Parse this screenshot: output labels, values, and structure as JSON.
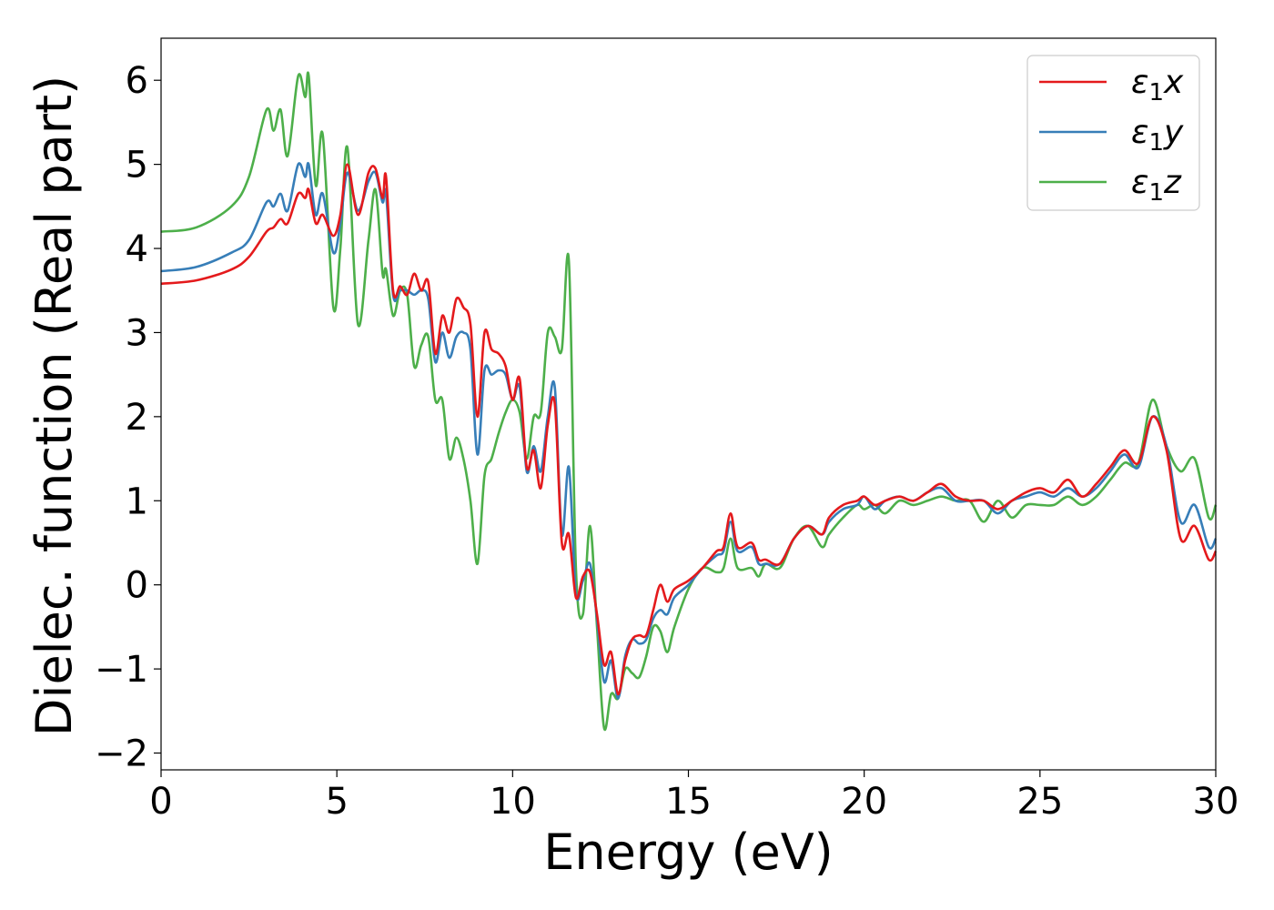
{
  "chart_data": {
    "type": "line",
    "xlabel": "Energy (eV)",
    "ylabel": "Dielec. function (Real part)",
    "xlim": [
      0,
      30
    ],
    "ylim": [
      -2.2,
      6.5
    ],
    "xticks": [
      0,
      5,
      10,
      15,
      20,
      25,
      30
    ],
    "xtick_labels": [
      "0",
      "5",
      "10",
      "15",
      "20",
      "25",
      "30"
    ],
    "yticks": [
      -2,
      -1,
      0,
      1,
      2,
      3,
      4,
      5,
      6
    ],
    "ytick_labels": [
      "−2",
      "−1",
      "0",
      "1",
      "2",
      "3",
      "4",
      "5",
      "6"
    ],
    "grid": false,
    "legend_position": "top-right",
    "series": [
      {
        "name": "ε1x",
        "legend_main": "ε",
        "legend_sub": "1",
        "legend_var": "x",
        "color": "#e41a1c",
        "x": [
          0,
          1,
          2,
          2.5,
          3.0,
          3.2,
          3.4,
          3.6,
          3.9,
          4.1,
          4.2,
          4.4,
          4.6,
          4.9,
          5.1,
          5.3,
          5.6,
          5.9,
          6.1,
          6.3,
          6.4,
          6.6,
          6.8,
          7.0,
          7.2,
          7.4,
          7.6,
          7.8,
          8.0,
          8.2,
          8.4,
          8.6,
          8.8,
          9.0,
          9.2,
          9.4,
          9.6,
          9.8,
          10.0,
          10.2,
          10.4,
          10.6,
          10.8,
          11.0,
          11.2,
          11.4,
          11.6,
          11.8,
          12.0,
          12.2,
          12.4,
          12.6,
          12.8,
          13.0,
          13.2,
          13.4,
          13.6,
          13.8,
          14.0,
          14.2,
          14.4,
          14.6,
          15.0,
          15.4,
          15.8,
          16.0,
          16.2,
          16.4,
          16.8,
          17.0,
          17.2,
          17.6,
          18.0,
          18.4,
          18.8,
          19.0,
          19.4,
          19.8,
          20.0,
          20.3,
          20.6,
          21.0,
          21.4,
          21.8,
          22.2,
          22.6,
          23.0,
          23.4,
          23.8,
          24.2,
          24.6,
          25.0,
          25.4,
          25.8,
          26.2,
          26.6,
          27.0,
          27.4,
          27.8,
          28.2,
          28.6,
          29.0,
          29.4,
          29.8,
          30.0
        ],
        "y": [
          3.58,
          3.62,
          3.75,
          3.9,
          4.2,
          4.25,
          4.35,
          4.3,
          4.65,
          4.6,
          4.7,
          4.3,
          4.4,
          4.15,
          4.4,
          5.0,
          4.4,
          4.9,
          4.95,
          4.6,
          4.85,
          3.5,
          3.55,
          3.45,
          3.7,
          3.5,
          3.6,
          2.75,
          3.2,
          3.0,
          3.4,
          3.3,
          3.1,
          2.0,
          3.0,
          2.8,
          2.75,
          2.6,
          2.2,
          2.45,
          1.4,
          1.6,
          1.15,
          1.9,
          2.15,
          0.5,
          0.6,
          -0.15,
          0.1,
          0.15,
          -0.35,
          -0.95,
          -0.8,
          -1.3,
          -0.9,
          -0.65,
          -0.6,
          -0.6,
          -0.3,
          0.0,
          -0.2,
          -0.05,
          0.05,
          0.2,
          0.4,
          0.45,
          0.85,
          0.45,
          0.5,
          0.3,
          0.3,
          0.25,
          0.55,
          0.7,
          0.6,
          0.8,
          0.95,
          1.0,
          1.05,
          0.95,
          1.0,
          1.05,
          1.0,
          1.1,
          1.2,
          1.05,
          1.0,
          1.0,
          0.9,
          1.0,
          1.1,
          1.15,
          1.1,
          1.25,
          1.05,
          1.2,
          1.4,
          1.6,
          1.45,
          2.0,
          1.6,
          0.55,
          0.7,
          0.3,
          0.4
        ]
      },
      {
        "name": "ε1y",
        "legend_main": "ε",
        "legend_sub": "1",
        "legend_var": "y",
        "color": "#377eb8",
        "x": [
          0,
          1,
          2,
          2.5,
          3.0,
          3.2,
          3.4,
          3.6,
          3.9,
          4.1,
          4.2,
          4.4,
          4.6,
          4.9,
          5.1,
          5.3,
          5.6,
          5.9,
          6.1,
          6.3,
          6.4,
          6.6,
          6.8,
          7.0,
          7.2,
          7.4,
          7.6,
          7.8,
          8.0,
          8.2,
          8.4,
          8.6,
          8.8,
          9.0,
          9.2,
          9.4,
          9.6,
          9.8,
          10.0,
          10.2,
          10.4,
          10.6,
          10.8,
          11.0,
          11.2,
          11.4,
          11.6,
          11.8,
          12.0,
          12.2,
          12.4,
          12.6,
          12.8,
          13.0,
          13.2,
          13.4,
          13.6,
          13.8,
          14.0,
          14.2,
          14.4,
          14.6,
          15.0,
          15.4,
          15.8,
          16.0,
          16.2,
          16.4,
          16.8,
          17.0,
          17.2,
          17.6,
          18.0,
          18.4,
          18.8,
          19.0,
          19.4,
          19.8,
          20.0,
          20.3,
          20.6,
          21.0,
          21.4,
          21.8,
          22.2,
          22.6,
          23.0,
          23.4,
          23.8,
          24.2,
          24.6,
          25.0,
          25.4,
          25.8,
          26.2,
          26.6,
          27.0,
          27.4,
          27.8,
          28.2,
          28.6,
          29.0,
          29.4,
          29.8,
          30.0
        ],
        "y": [
          3.73,
          3.78,
          3.95,
          4.1,
          4.55,
          4.5,
          4.65,
          4.45,
          5.0,
          4.85,
          5.0,
          4.4,
          4.65,
          3.95,
          4.3,
          4.9,
          4.45,
          4.8,
          4.9,
          4.55,
          4.65,
          3.45,
          3.5,
          3.5,
          3.45,
          3.5,
          3.4,
          2.65,
          3.0,
          2.7,
          2.95,
          3.0,
          2.8,
          1.55,
          2.55,
          2.5,
          2.55,
          2.5,
          2.2,
          2.35,
          1.35,
          1.65,
          1.35,
          2.0,
          2.35,
          0.6,
          1.4,
          -0.1,
          0.05,
          0.25,
          -0.4,
          -1.15,
          -0.9,
          -1.35,
          -0.85,
          -0.65,
          -0.7,
          -0.65,
          -0.4,
          -0.3,
          -0.35,
          -0.15,
          0.0,
          0.2,
          0.35,
          0.4,
          0.75,
          0.4,
          0.45,
          0.25,
          0.25,
          0.25,
          0.55,
          0.7,
          0.6,
          0.75,
          0.9,
          0.95,
          1.05,
          0.9,
          1.0,
          1.05,
          1.0,
          1.1,
          1.15,
          1.0,
          1.0,
          1.0,
          0.85,
          1.0,
          1.05,
          1.1,
          1.05,
          1.15,
          1.05,
          1.15,
          1.35,
          1.55,
          1.4,
          2.0,
          1.65,
          0.75,
          0.95,
          0.45,
          0.55
        ]
      },
      {
        "name": "ε1z",
        "legend_main": "ε",
        "legend_sub": "1",
        "legend_var": "z",
        "color": "#4daf4a",
        "x": [
          0,
          1,
          2,
          2.5,
          3.0,
          3.2,
          3.4,
          3.6,
          3.9,
          4.1,
          4.2,
          4.4,
          4.6,
          4.9,
          5.1,
          5.3,
          5.6,
          5.9,
          6.1,
          6.3,
          6.4,
          6.6,
          6.8,
          7.0,
          7.2,
          7.4,
          7.6,
          7.8,
          8.0,
          8.2,
          8.4,
          8.6,
          8.8,
          9.0,
          9.2,
          9.4,
          9.6,
          9.8,
          10.0,
          10.2,
          10.4,
          10.6,
          10.8,
          11.0,
          11.2,
          11.4,
          11.6,
          11.8,
          12.0,
          12.2,
          12.4,
          12.6,
          12.8,
          13.0,
          13.2,
          13.4,
          13.6,
          13.8,
          14.0,
          14.2,
          14.4,
          14.6,
          15.0,
          15.4,
          15.8,
          16.0,
          16.2,
          16.4,
          16.8,
          17.0,
          17.2,
          17.6,
          18.0,
          18.4,
          18.8,
          19.0,
          19.4,
          19.8,
          20.0,
          20.3,
          20.6,
          21.0,
          21.4,
          21.8,
          22.2,
          22.6,
          23.0,
          23.4,
          23.8,
          24.2,
          24.6,
          25.0,
          25.4,
          25.8,
          26.2,
          26.6,
          27.0,
          27.4,
          27.8,
          28.2,
          28.6,
          29.0,
          29.4,
          29.8,
          30.0
        ],
        "y": [
          4.2,
          4.25,
          4.5,
          4.85,
          5.65,
          5.4,
          5.65,
          5.1,
          6.05,
          5.8,
          6.05,
          4.75,
          5.35,
          3.3,
          4.0,
          5.2,
          3.1,
          4.1,
          4.7,
          3.7,
          3.75,
          3.2,
          3.5,
          3.45,
          2.6,
          2.85,
          2.95,
          2.2,
          2.2,
          1.5,
          1.75,
          1.5,
          1.0,
          0.25,
          1.3,
          1.5,
          1.8,
          2.05,
          2.2,
          2.05,
          1.5,
          2.0,
          2.05,
          3.0,
          2.95,
          2.8,
          3.85,
          0.2,
          -0.35,
          0.7,
          -0.5,
          -1.7,
          -1.3,
          -1.35,
          -1.0,
          -1.05,
          -1.1,
          -0.85,
          -0.5,
          -0.55,
          -0.8,
          -0.5,
          -0.05,
          0.2,
          0.15,
          0.2,
          0.55,
          0.2,
          0.2,
          0.1,
          0.25,
          0.2,
          0.55,
          0.7,
          0.45,
          0.6,
          0.8,
          0.95,
          0.9,
          0.95,
          0.85,
          1.0,
          0.95,
          1.0,
          1.05,
          1.0,
          1.0,
          0.75,
          1.0,
          0.8,
          0.95,
          0.95,
          0.95,
          1.05,
          0.95,
          1.05,
          1.25,
          1.45,
          1.45,
          2.2,
          1.65,
          1.35,
          1.5,
          0.8,
          0.95
        ]
      }
    ]
  }
}
